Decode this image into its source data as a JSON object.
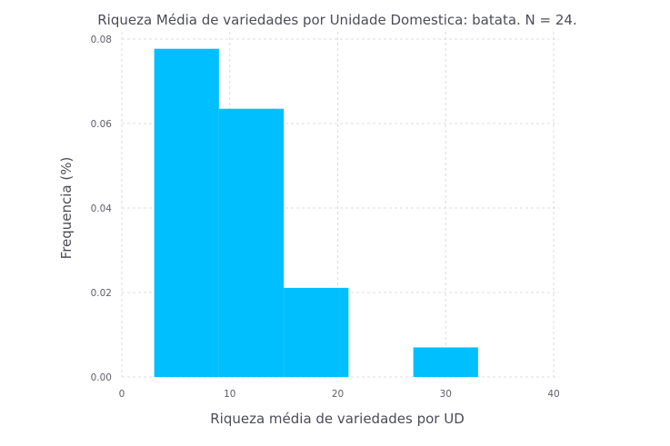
{
  "chart_data": {
    "type": "bar",
    "title": "Riqueza Média de variedades por Unidade Domestica: batata. N = 24.",
    "xlabel": "Riqueza média de variedades por UD",
    "ylabel": "Frequencia (%)",
    "xlim": [
      0,
      40
    ],
    "ylim": [
      0,
      0.08
    ],
    "xticks": [
      "0",
      "10",
      "20",
      "30",
      "40"
    ],
    "yticks": [
      "0.00",
      "0.02",
      "0.04",
      "0.06",
      "0.08"
    ],
    "grid": true,
    "bins": [
      {
        "x0": 3,
        "x1": 9,
        "value": 0.0777
      },
      {
        "x0": 9,
        "x1": 15,
        "value": 0.0635
      },
      {
        "x0": 15,
        "x1": 21,
        "value": 0.0211
      },
      {
        "x0": 21,
        "x1": 27,
        "value": 0
      },
      {
        "x0": 27,
        "x1": 33,
        "value": 0.007
      }
    ],
    "bar_color": "#00bfff"
  }
}
